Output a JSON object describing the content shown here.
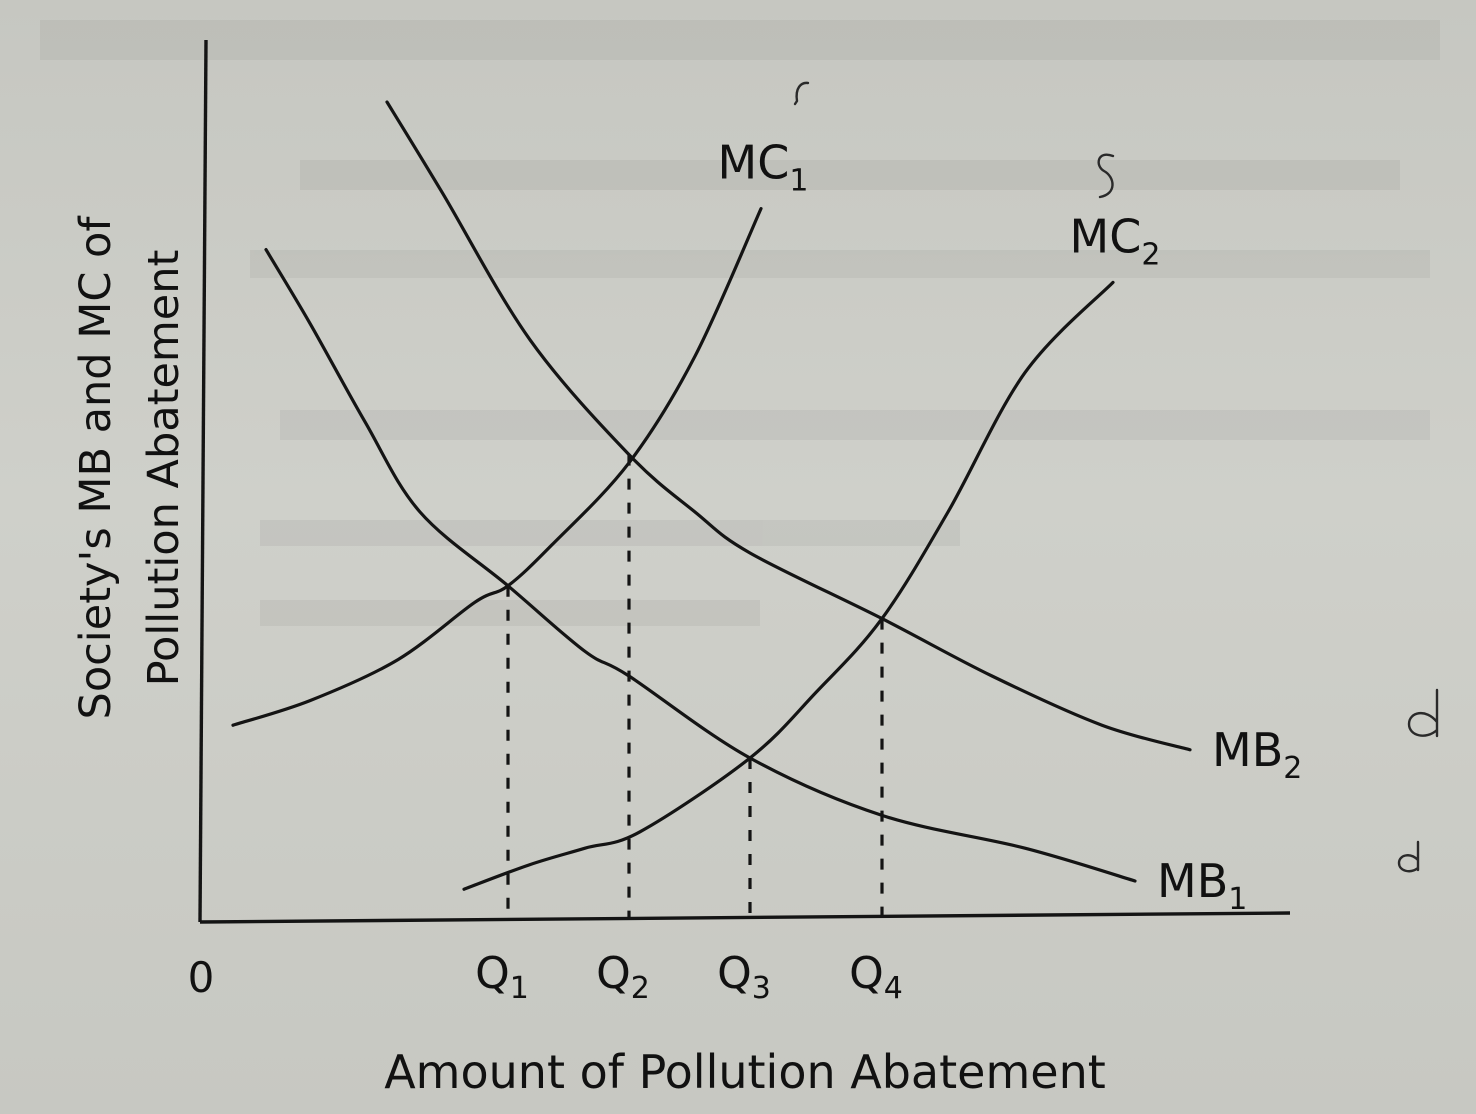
{
  "chart_data": {
    "type": "line",
    "title": "",
    "xlabel": "Amount of Pollution Abatement",
    "ylabel_line1": "Society's MB and MC of",
    "ylabel_line2": "Pollution Abatement",
    "origin_label": "0",
    "x_range": [
      0,
      10
    ],
    "y_range": [
      0,
      10
    ],
    "grid": false,
    "x_ticks": [
      {
        "label": "Q",
        "sub": "1",
        "value": 2.8
      },
      {
        "label": "Q",
        "sub": "2",
        "value": 3.9
      },
      {
        "label": "Q",
        "sub": "3",
        "value": 5.0
      },
      {
        "label": "Q",
        "sub": "4",
        "value": 6.2
      }
    ],
    "series": [
      {
        "name": "MC",
        "sub": "1",
        "kind": "cost",
        "x": [
          0.3,
          1.0,
          1.8,
          2.5,
          2.8,
          3.2,
          3.9,
          4.5,
          5.1
        ],
        "y": [
          2.4,
          2.7,
          3.2,
          3.9,
          4.1,
          4.6,
          5.6,
          6.9,
          8.7
        ]
      },
      {
        "name": "MC",
        "sub": "2",
        "kind": "cost",
        "x": [
          2.4,
          3.0,
          3.5,
          4.0,
          5.0,
          5.6,
          6.2,
          6.8,
          7.5,
          8.3
        ],
        "y": [
          0.4,
          0.7,
          0.9,
          1.1,
          2.0,
          2.8,
          3.7,
          5.0,
          6.7,
          7.8
        ]
      },
      {
        "name": "MB",
        "sub": "1",
        "kind": "benefit",
        "x": [
          0.6,
          1.0,
          1.5,
          2.0,
          2.8,
          3.5,
          3.9,
          5.0,
          6.2,
          7.5,
          8.5
        ],
        "y": [
          8.2,
          7.3,
          6.1,
          5.0,
          4.1,
          3.3,
          3.0,
          2.0,
          1.3,
          0.9,
          0.5
        ]
      },
      {
        "name": "MB",
        "sub": "2",
        "kind": "benefit",
        "x": [
          1.7,
          2.2,
          3.0,
          3.9,
          4.5,
          5.0,
          6.2,
          7.2,
          8.2,
          9.0
        ],
        "y": [
          10.0,
          8.9,
          7.1,
          5.7,
          5.0,
          4.5,
          3.7,
          3.0,
          2.4,
          2.1
        ]
      }
    ],
    "equilibria": [
      {
        "label": "Q1",
        "x": 2.8,
        "y": 4.1
      },
      {
        "label": "Q2",
        "x": 3.9,
        "y": 5.7
      },
      {
        "label": "Q3",
        "x": 5.0,
        "y": 2.0
      },
      {
        "label": "Q4",
        "x": 6.2,
        "y": 3.7
      }
    ]
  }
}
